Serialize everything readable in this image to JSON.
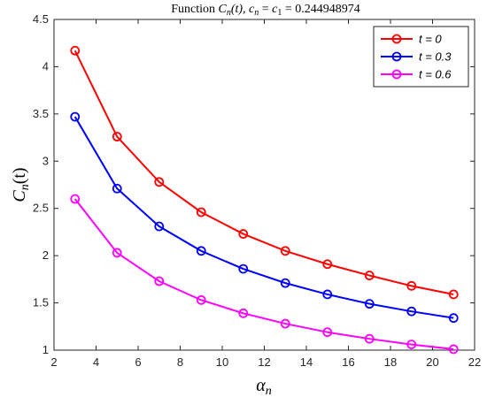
{
  "chart_data": {
    "type": "line",
    "title": {
      "prefix": "Function ",
      "func": "C",
      "func_sub": "n",
      "func_arg": "(t), ",
      "var": "c",
      "var_sub": "n",
      "eq1": " = ",
      "var2": "c",
      "var2_sub": "1",
      "eq2": " = ",
      "value": "0.244948974"
    },
    "xlabel": {
      "main": "α",
      "sub": "n"
    },
    "ylabel": {
      "main": "C",
      "sub": "n",
      "rest": "(t)"
    },
    "xlim": [
      2,
      22
    ],
    "ylim": [
      1,
      4.5
    ],
    "xticks": [
      2,
      4,
      6,
      8,
      10,
      12,
      14,
      16,
      18,
      20,
      22
    ],
    "yticks": [
      1,
      1.5,
      2,
      2.5,
      3,
      3.5,
      4,
      4.5
    ],
    "x": [
      3,
      5,
      7,
      9,
      11,
      13,
      15,
      17,
      19,
      21
    ],
    "series": [
      {
        "name": "t = 0",
        "color": "#ff0000",
        "values": [
          4.17,
          3.26,
          2.78,
          2.46,
          2.23,
          2.05,
          1.91,
          1.79,
          1.68,
          1.59
        ]
      },
      {
        "name": "t = 0.3",
        "color": "#0000ff",
        "values": [
          3.47,
          2.71,
          2.31,
          2.05,
          1.86,
          1.71,
          1.59,
          1.49,
          1.41,
          1.34
        ]
      },
      {
        "name": "t = 0.6",
        "color": "#ff00ff",
        "values": [
          2.6,
          2.03,
          1.73,
          1.53,
          1.39,
          1.28,
          1.19,
          1.12,
          1.06,
          1.01
        ]
      }
    ],
    "marker": "circle",
    "grid": false,
    "legend_position": "top-right"
  }
}
